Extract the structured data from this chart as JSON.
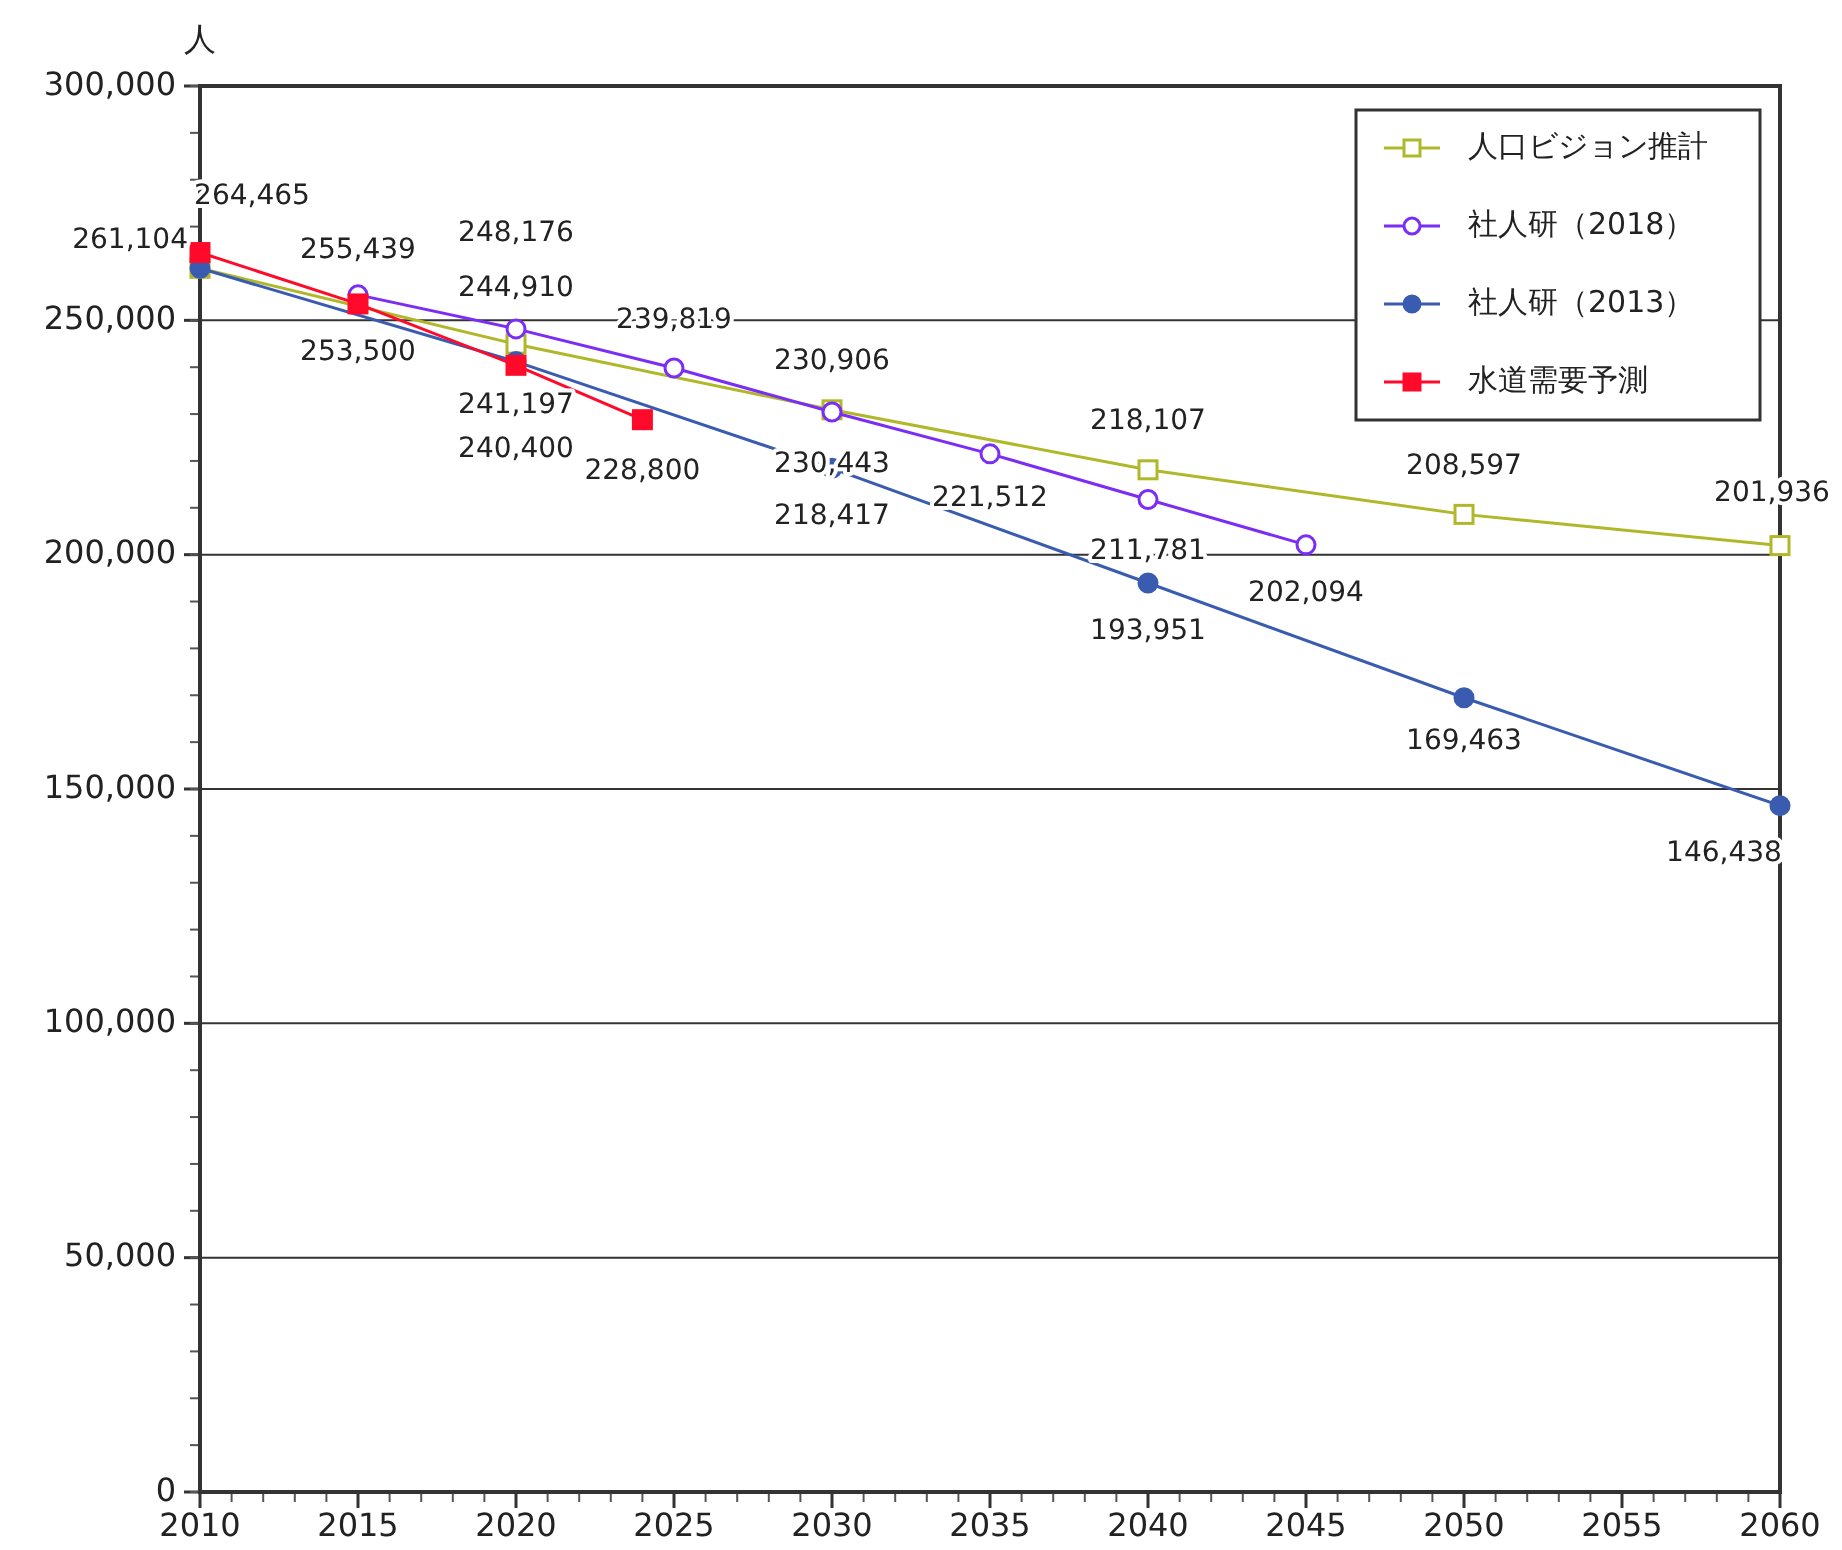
{
  "chart_data": {
    "type": "line",
    "ylabel": "人",
    "xlim": [
      2010,
      2060
    ],
    "xticks": [
      2010,
      2015,
      2020,
      2025,
      2030,
      2035,
      2040,
      2045,
      2050,
      2055,
      2060
    ],
    "ylim": [
      0,
      300000
    ],
    "yticks": [
      {
        "value": 0,
        "label": "0"
      },
      {
        "value": 50000,
        "label": "50,000"
      },
      {
        "value": 100000,
        "label": "100,000"
      },
      {
        "value": 150000,
        "label": "150,000"
      },
      {
        "value": 200000,
        "label": "200,000"
      },
      {
        "value": 250000,
        "label": "250,000"
      },
      {
        "value": 300000,
        "label": "300,000"
      }
    ],
    "grid": "y",
    "legend": "top right",
    "series": [
      {
        "name": "人口ビジョン推計",
        "color": "#b0b82a",
        "marker": "square",
        "x": [
          2010,
          2020,
          2030,
          2040,
          2050,
          2060
        ],
        "values": [
          261104,
          244910,
          230906,
          218107,
          208597,
          201936
        ],
        "value_labels": [
          "261,104",
          "244,910",
          "230,906",
          "218,107",
          "208,597",
          "201,936"
        ]
      },
      {
        "name": "社人研（2018）",
        "color": "#7b2cf5",
        "marker": "circle",
        "x": [
          2015,
          2020,
          2025,
          2030,
          2035,
          2040,
          2045
        ],
        "values": [
          255439,
          248176,
          239819,
          230443,
          221512,
          211781,
          202094
        ],
        "value_labels": [
          "255,439",
          "248,176",
          "239,819",
          "230,443",
          "221,512",
          "211,781",
          "202,094"
        ]
      },
      {
        "name": "社人研（2013）",
        "color": "#3a5cb0",
        "marker": "circle",
        "x": [
          2010,
          2020,
          2030,
          2040,
          2050,
          2060
        ],
        "values": [
          261104,
          241197,
          218417,
          193951,
          169463,
          146438
        ],
        "value_labels": [
          null,
          "241,197",
          "218,417",
          "193,951",
          "169,463",
          "146,438"
        ]
      },
      {
        "name": "水道需要予測",
        "color": "#ff0a2a",
        "marker": "square",
        "x": [
          2010,
          2015,
          2020,
          2024
        ],
        "values": [
          264465,
          253500,
          240400,
          228800
        ],
        "value_labels": [
          "264,465",
          "253,500",
          "240,400",
          "228,800"
        ]
      }
    ]
  }
}
